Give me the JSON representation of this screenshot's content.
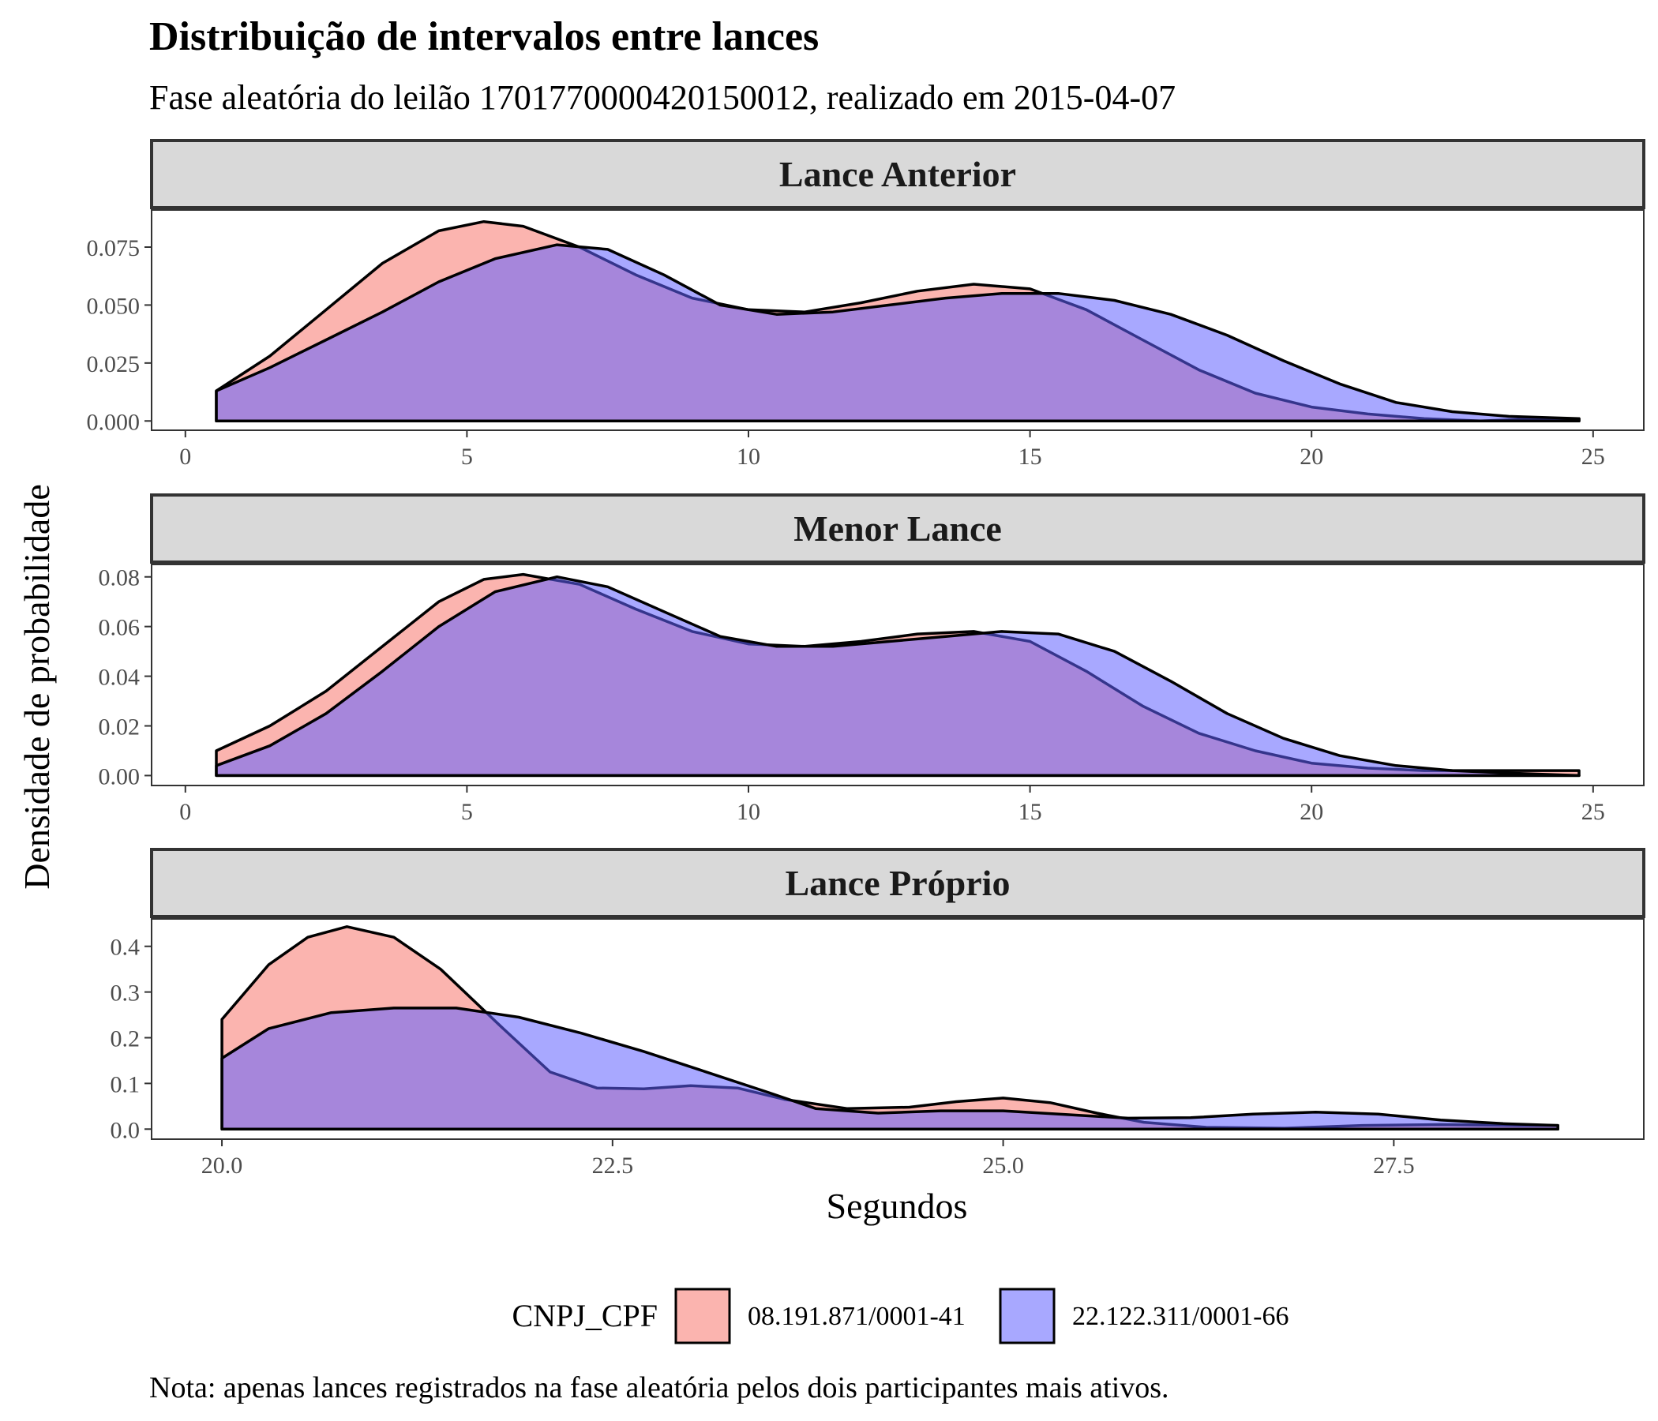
{
  "chart_data": {
    "type": "area",
    "title": "Distribuição de intervalos entre lances",
    "subtitle": "Fase aleatória do leilão 1701770000420150012, realizado em 2015-04-07",
    "xlabel": "Segundos",
    "ylabel": "Densidade de probabilidade",
    "caption": "Nota: apenas lances registrados na fase aleatória pelos dois participantes mais ativos.",
    "legend": {
      "title": "CNPJ_CPF",
      "placement": "bottom",
      "entries": [
        {
          "label": "08.191.871/0001-41",
          "color": "#F8766D"
        },
        {
          "label": "22.122.311/0001-66",
          "color": "#6161FF"
        }
      ]
    },
    "colors": {
      "series_a": "#F8766D",
      "series_b": "#6161FF",
      "strip_fill": "#D9D9D9",
      "strip_border": "#333333"
    },
    "fill_opacity": 0.55,
    "panels": [
      {
        "strip": "Lance Anterior",
        "xlim": [
          -0.6,
          25.9
        ],
        "ylim": [
          -0.004,
          0.091
        ],
        "xticks": [
          0,
          5,
          10,
          15,
          20,
          25
        ],
        "xtick_labels": [
          "0",
          "5",
          "10",
          "15",
          "20",
          "25"
        ],
        "yticks": [
          0,
          0.025,
          0.05,
          0.075
        ],
        "ytick_labels": [
          "0.000",
          "0.025",
          "0.050",
          "0.075"
        ],
        "series": [
          {
            "name": "08.191.871/0001-41",
            "x": [
              0.55,
              1.5,
              2.5,
              3.5,
              4.5,
              5.3,
              6.0,
              7.0,
              8.0,
              9.0,
              10.0,
              11.0,
              12.0,
              13.0,
              14.0,
              15.0,
              16.0,
              17.0,
              18.0,
              19.0,
              20.0,
              21.0,
              22.0,
              23.0,
              24.0,
              24.75
            ],
            "y": [
              0.013,
              0.028,
              0.048,
              0.068,
              0.082,
              0.086,
              0.084,
              0.075,
              0.063,
              0.053,
              0.048,
              0.047,
              0.051,
              0.056,
              0.059,
              0.057,
              0.048,
              0.035,
              0.022,
              0.012,
              0.006,
              0.003,
              0.001,
              0.0,
              0.001,
              0.001
            ]
          },
          {
            "name": "22.122.311/0001-66",
            "x": [
              0.55,
              1.5,
              2.5,
              3.5,
              4.5,
              5.5,
              6.6,
              7.5,
              8.5,
              9.5,
              10.5,
              11.5,
              12.5,
              13.5,
              14.5,
              15.5,
              16.5,
              17.5,
              18.5,
              19.5,
              20.5,
              21.5,
              22.5,
              23.5,
              24.75
            ],
            "y": [
              0.013,
              0.023,
              0.035,
              0.047,
              0.06,
              0.07,
              0.076,
              0.074,
              0.063,
              0.05,
              0.046,
              0.047,
              0.05,
              0.053,
              0.055,
              0.055,
              0.052,
              0.046,
              0.037,
              0.026,
              0.016,
              0.008,
              0.004,
              0.002,
              0.001
            ]
          }
        ]
      },
      {
        "strip": "Menor Lance",
        "xlim": [
          -0.6,
          25.9
        ],
        "ylim": [
          -0.004,
          0.085
        ],
        "xticks": [
          0,
          5,
          10,
          15,
          20,
          25
        ],
        "xtick_labels": [
          "0",
          "5",
          "10",
          "15",
          "20",
          "25"
        ],
        "yticks": [
          0,
          0.02,
          0.04,
          0.06,
          0.08
        ],
        "ytick_labels": [
          "0.00",
          "0.02",
          "0.04",
          "0.06",
          "0.08"
        ],
        "series": [
          {
            "name": "08.191.871/0001-41",
            "x": [
              0.55,
              1.5,
              2.5,
              3.5,
              4.5,
              5.3,
              6.0,
              7.0,
              8.0,
              9.0,
              10.0,
              11.0,
              12.0,
              13.0,
              14.0,
              15.0,
              16.0,
              17.0,
              18.0,
              19.0,
              20.0,
              21.0,
              22.0,
              23.0,
              24.75
            ],
            "y": [
              0.01,
              0.02,
              0.034,
              0.052,
              0.07,
              0.079,
              0.081,
              0.077,
              0.067,
              0.058,
              0.053,
              0.052,
              0.054,
              0.057,
              0.058,
              0.054,
              0.042,
              0.028,
              0.017,
              0.01,
              0.005,
              0.003,
              0.002,
              0.002,
              0.002
            ]
          },
          {
            "name": "22.122.311/0001-66",
            "x": [
              0.55,
              1.5,
              2.5,
              3.5,
              4.5,
              5.5,
              6.6,
              7.5,
              8.5,
              9.5,
              10.5,
              11.5,
              12.5,
              13.5,
              14.5,
              15.5,
              16.5,
              17.5,
              18.5,
              19.5,
              20.5,
              21.5,
              22.5,
              23.5,
              24.75
            ],
            "y": [
              0.004,
              0.012,
              0.025,
              0.042,
              0.06,
              0.074,
              0.08,
              0.076,
              0.066,
              0.056,
              0.052,
              0.052,
              0.054,
              0.056,
              0.058,
              0.057,
              0.05,
              0.038,
              0.025,
              0.015,
              0.008,
              0.004,
              0.002,
              0.001,
              0.0
            ]
          }
        ]
      },
      {
        "strip": "Lance Próprio",
        "xlim": [
          19.55,
          29.1
        ],
        "ylim": [
          -0.022,
          0.46
        ],
        "xticks": [
          20,
          22.5,
          25,
          27.5
        ],
        "xtick_labels": [
          "20.0",
          "22.5",
          "25.0",
          "27.5"
        ],
        "yticks": [
          0,
          0.1,
          0.2,
          0.3,
          0.4
        ],
        "ytick_labels": [
          "0.0",
          "0.1",
          "0.2",
          "0.3",
          "0.4"
        ],
        "series": [
          {
            "name": "08.191.871/0001-41",
            "x": [
              20.0,
              20.3,
              20.55,
              20.8,
              21.1,
              21.4,
              21.8,
              22.1,
              22.4,
              22.7,
              23.0,
              23.3,
              23.6,
              24.0,
              24.4,
              24.7,
              25.0,
              25.3,
              25.6,
              25.9,
              26.3,
              26.8,
              27.3,
              27.8,
              28.3,
              28.55
            ],
            "y": [
              0.24,
              0.36,
              0.42,
              0.443,
              0.42,
              0.35,
              0.22,
              0.125,
              0.09,
              0.088,
              0.095,
              0.09,
              0.065,
              0.045,
              0.048,
              0.06,
              0.068,
              0.058,
              0.035,
              0.015,
              0.004,
              0.002,
              0.008,
              0.01,
              0.008,
              0.008
            ]
          },
          {
            "name": "22.122.311/0001-66",
            "x": [
              20.0,
              20.3,
              20.7,
              21.1,
              21.5,
              21.9,
              22.3,
              22.7,
              23.1,
              23.5,
              23.8,
              24.2,
              24.6,
              25.0,
              25.4,
              25.8,
              26.2,
              26.6,
              27.0,
              27.4,
              27.8,
              28.2,
              28.55
            ],
            "y": [
              0.155,
              0.22,
              0.255,
              0.265,
              0.265,
              0.245,
              0.21,
              0.17,
              0.125,
              0.08,
              0.045,
              0.035,
              0.04,
              0.04,
              0.032,
              0.024,
              0.025,
              0.033,
              0.037,
              0.033,
              0.02,
              0.012,
              0.008
            ]
          }
        ]
      }
    ]
  }
}
